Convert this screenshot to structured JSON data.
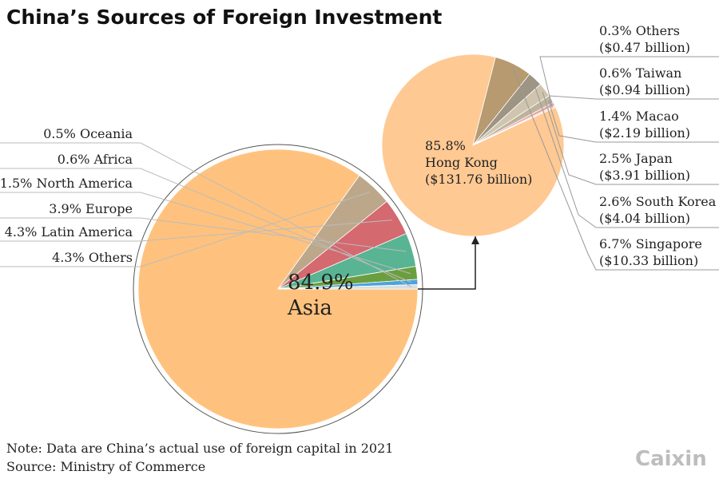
{
  "chart_data": [
    {
      "type": "pie",
      "title": "China’s Sources of Foreign Investment",
      "slices": [
        {
          "name": "Asia",
          "value": 84.9,
          "label": "84.9%",
          "color": "#FFC27E"
        },
        {
          "name": "Others",
          "value": 4.3,
          "label": "4.3% Others",
          "color": "#BDA78A"
        },
        {
          "name": "Latin America",
          "value": 4.3,
          "label": "4.3% Latin America",
          "color": "#D4696F"
        },
        {
          "name": "Europe",
          "value": 3.9,
          "label": "3.9% Europe",
          "color": "#58B493"
        },
        {
          "name": "North America",
          "value": 1.5,
          "label": "1.5% North America",
          "color": "#6B9E3F"
        },
        {
          "name": "Africa",
          "value": 0.6,
          "label": "0.6% Africa",
          "color": "#4CA3DD"
        },
        {
          "name": "Oceania",
          "value": 0.5,
          "label": "0.5% Oceania",
          "color": "#D7DEE0"
        }
      ]
    },
    {
      "type": "pie",
      "slices": [
        {
          "name": "Hong Kong",
          "value": 85.8,
          "label": "85.8%",
          "amount": "($131.76 billion)",
          "color": "#FFC993"
        },
        {
          "name": "Singapore",
          "value": 6.7,
          "label": "6.7% Singapore",
          "amount": "($10.33 billion)",
          "color": "#B79A70"
        },
        {
          "name": "South Korea",
          "value": 2.6,
          "label": "2.6% South Korea",
          "amount": "($4.04 billion)",
          "color": "#9E9484"
        },
        {
          "name": "Japan",
          "value": 2.5,
          "label": "2.5% Japan",
          "amount": "($3.91 billion)",
          "color": "#D0C4AE"
        },
        {
          "name": "Macao",
          "value": 1.4,
          "label": "1.4% Macao",
          "amount": "($2.19 billion)",
          "color": "#BDB39D"
        },
        {
          "name": "Taiwan",
          "value": 0.6,
          "label": "0.6% Taiwan",
          "amount": "($0.94 billion)",
          "color": "#E9A7A0"
        },
        {
          "name": "Others",
          "value": 0.3,
          "label": "0.3% Others",
          "amount": "($0.47 billion)",
          "color": "#F1DDD3"
        }
      ]
    }
  ],
  "footer": {
    "note": "Note: Data are China’s actual use of foreign capital in 2021",
    "source": "Source: Ministry of Commerce",
    "logo": "Caixin"
  }
}
